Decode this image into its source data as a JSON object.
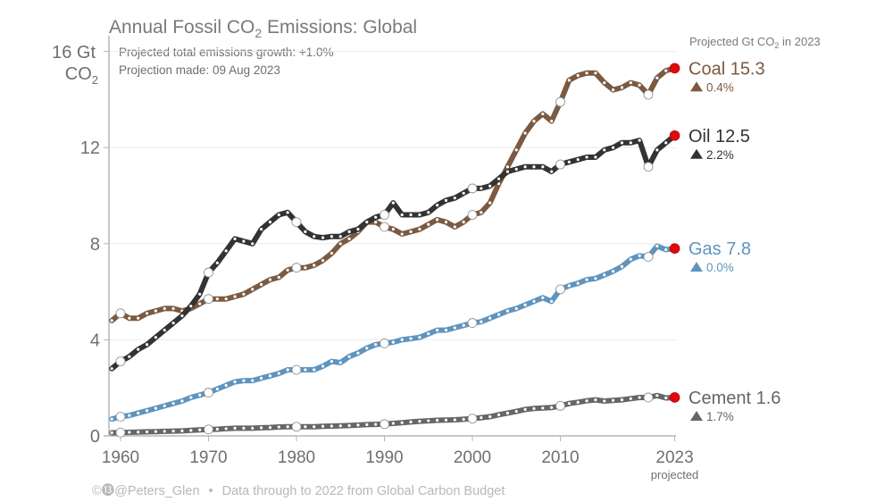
{
  "chart_data": {
    "type": "line",
    "title": "Annual Fossil CO₂ Emissions: Global",
    "title_parts": {
      "pre": "Annual Fossil CO",
      "sub": "2",
      "post": " Emissions: Global"
    },
    "subtitle_lines": [
      "Projected total emissions growth: +1.0%",
      "Projection made: 09 Aug 2023"
    ],
    "ylabel": {
      "line1": "16 Gt",
      "line2_pre": "CO",
      "line2_sub": "2"
    },
    "xlabel": "",
    "ylim": [
      0,
      16
    ],
    "xlim": [
      1959,
      2023
    ],
    "yticks": [
      0,
      4,
      8,
      12
    ],
    "ytick_labels": [
      "0",
      "4",
      "8",
      "12"
    ],
    "xticks": [
      1960,
      1970,
      1980,
      1990,
      2000,
      2010,
      2023
    ],
    "xtick_labels": [
      "1960",
      "1970",
      "1980",
      "1990",
      "2000",
      "2010",
      "2023"
    ],
    "xtick_note": "projected",
    "grid": true,
    "legend_header": {
      "pre": "Projected Gt CO",
      "sub": "2",
      "post": " in 2023"
    },
    "legend_position": "right",
    "marker_years": [
      1960,
      1970,
      1980,
      1990,
      2000,
      2010,
      2020
    ],
    "projected_year": 2023,
    "projected_marker_color": "#e3070d",
    "x": [
      1959,
      1960,
      1961,
      1962,
      1963,
      1964,
      1965,
      1966,
      1967,
      1968,
      1969,
      1970,
      1971,
      1972,
      1973,
      1974,
      1975,
      1976,
      1977,
      1978,
      1979,
      1980,
      1981,
      1982,
      1983,
      1984,
      1985,
      1986,
      1987,
      1988,
      1989,
      1990,
      1991,
      1992,
      1993,
      1994,
      1995,
      1996,
      1997,
      1998,
      1999,
      2000,
      2001,
      2002,
      2003,
      2004,
      2005,
      2006,
      2007,
      2008,
      2009,
      2010,
      2011,
      2012,
      2013,
      2014,
      2015,
      2016,
      2017,
      2018,
      2019,
      2020,
      2021,
      2022,
      2023
    ],
    "series": [
      {
        "name": "Coal",
        "label": "Coal 15.3",
        "value": 15.3,
        "change": "0.4%",
        "color": "#7b5a41",
        "values": [
          4.8,
          5.1,
          4.9,
          4.9,
          5.1,
          5.2,
          5.3,
          5.3,
          5.2,
          5.3,
          5.5,
          5.7,
          5.7,
          5.7,
          5.8,
          5.9,
          6.1,
          6.3,
          6.5,
          6.6,
          6.9,
          7.0,
          7.0,
          7.1,
          7.3,
          7.6,
          8.0,
          8.2,
          8.5,
          8.9,
          8.9,
          8.7,
          8.6,
          8.4,
          8.5,
          8.6,
          8.8,
          9.0,
          8.9,
          8.7,
          8.9,
          9.2,
          9.3,
          9.7,
          10.5,
          11.2,
          11.9,
          12.6,
          13.1,
          13.4,
          13.1,
          13.9,
          14.8,
          15.0,
          15.1,
          15.1,
          14.7,
          14.4,
          14.5,
          14.7,
          14.6,
          14.2,
          14.9,
          15.2,
          15.3
        ]
      },
      {
        "name": "Oil",
        "label": "Oil 12.5",
        "value": 12.5,
        "change": "2.2%",
        "color": "#333333",
        "values": [
          2.8,
          3.1,
          3.3,
          3.6,
          3.8,
          4.1,
          4.4,
          4.7,
          5.0,
          5.4,
          5.9,
          6.8,
          7.2,
          7.7,
          8.2,
          8.1,
          8.0,
          8.6,
          8.9,
          9.2,
          9.3,
          8.9,
          8.5,
          8.3,
          8.25,
          8.3,
          8.3,
          8.5,
          8.6,
          8.9,
          9.1,
          9.2,
          9.7,
          9.2,
          9.2,
          9.2,
          9.3,
          9.6,
          9.8,
          9.9,
          10.1,
          10.3,
          10.3,
          10.4,
          10.7,
          11.0,
          11.1,
          11.2,
          11.2,
          11.2,
          11.0,
          11.3,
          11.4,
          11.5,
          11.6,
          11.6,
          11.9,
          12.0,
          12.2,
          12.2,
          12.3,
          11.2,
          11.9,
          12.2,
          12.5
        ]
      },
      {
        "name": "Gas",
        "label": "Gas 7.8",
        "value": 7.8,
        "change": "0.0%",
        "color": "#5f94bd",
        "values": [
          0.7,
          0.8,
          0.85,
          0.95,
          1.05,
          1.15,
          1.25,
          1.35,
          1.45,
          1.6,
          1.7,
          1.8,
          1.95,
          2.1,
          2.25,
          2.3,
          2.3,
          2.4,
          2.5,
          2.6,
          2.75,
          2.75,
          2.75,
          2.75,
          2.9,
          3.1,
          3.05,
          3.3,
          3.45,
          3.65,
          3.8,
          3.85,
          3.9,
          4.0,
          4.05,
          4.1,
          4.25,
          4.4,
          4.4,
          4.5,
          4.6,
          4.7,
          4.75,
          4.9,
          5.05,
          5.2,
          5.3,
          5.45,
          5.6,
          5.75,
          5.6,
          6.1,
          6.25,
          6.35,
          6.5,
          6.55,
          6.7,
          6.85,
          7.05,
          7.35,
          7.5,
          7.45,
          7.9,
          7.75,
          7.8
        ]
      },
      {
        "name": "Cement",
        "label": "Cement 1.6",
        "value": 1.6,
        "change": "1.7%",
        "color": "#666666",
        "values": [
          0.13,
          0.14,
          0.15,
          0.16,
          0.17,
          0.18,
          0.19,
          0.2,
          0.21,
          0.23,
          0.25,
          0.27,
          0.28,
          0.3,
          0.32,
          0.32,
          0.32,
          0.34,
          0.35,
          0.37,
          0.38,
          0.38,
          0.38,
          0.38,
          0.4,
          0.41,
          0.42,
          0.43,
          0.45,
          0.47,
          0.48,
          0.49,
          0.52,
          0.55,
          0.58,
          0.61,
          0.63,
          0.65,
          0.66,
          0.67,
          0.69,
          0.72,
          0.76,
          0.8,
          0.88,
          0.95,
          1.02,
          1.1,
          1.14,
          1.16,
          1.18,
          1.25,
          1.35,
          1.4,
          1.46,
          1.5,
          1.45,
          1.48,
          1.5,
          1.55,
          1.6,
          1.6,
          1.68,
          1.58,
          1.6
        ]
      }
    ]
  },
  "footer": {
    "credit": "©⓭@Peters_Glen",
    "bullet": "•",
    "source": "Data through to 2022 from Global Carbon Budget"
  }
}
